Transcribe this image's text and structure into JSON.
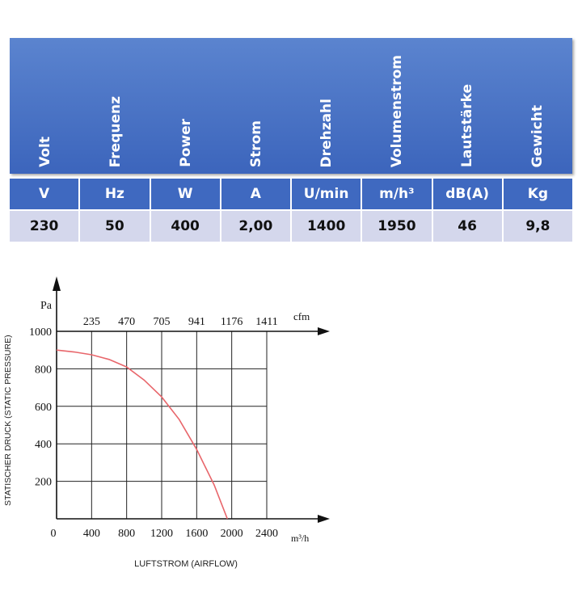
{
  "table": {
    "headers": [
      "Volt",
      "Frequenz",
      "Power",
      "Strom",
      "Drehzahl",
      "Volumenstrom",
      "Lautstärke",
      "Gewicht"
    ],
    "units": [
      "V",
      "Hz",
      "W",
      "A",
      "U/min",
      "m/h³",
      "dB(A)",
      "Kg"
    ],
    "values": [
      "230",
      "50",
      "400",
      "2,00",
      "1400",
      "1950",
      "46",
      "9,8"
    ],
    "colors": {
      "header": "#4a73c6",
      "unit_row": "#3f69c0",
      "value_row": "#d4d7ec"
    }
  },
  "chart_data": {
    "type": "line",
    "ylabel": "STATISCHER DRUCK (STATIC PRESSURE)",
    "xlabel": "LUFTSTROM (AIRFLOW)",
    "y_unit": "Pa",
    "x_unit": "m³/h",
    "top_unit": "cfm",
    "origin_label": "0",
    "x_ticks": [
      "400",
      "800",
      "1200",
      "1600",
      "2000",
      "2400"
    ],
    "y_ticks": [
      "200",
      "400",
      "600",
      "800",
      "1000"
    ],
    "top_ticks": [
      "235",
      "470",
      "705",
      "941",
      "1176",
      "1411"
    ],
    "xlim": [
      0,
      2400
    ],
    "ylim": [
      0,
      1000
    ],
    "grid": true,
    "curve_color": "#e8666b",
    "series": [
      {
        "x": [
          0,
          200,
          400,
          600,
          800,
          1000,
          1200,
          1400,
          1600,
          1800,
          1950
        ],
        "y": [
          900,
          890,
          875,
          850,
          810,
          740,
          650,
          530,
          370,
          180,
          0
        ]
      }
    ]
  }
}
